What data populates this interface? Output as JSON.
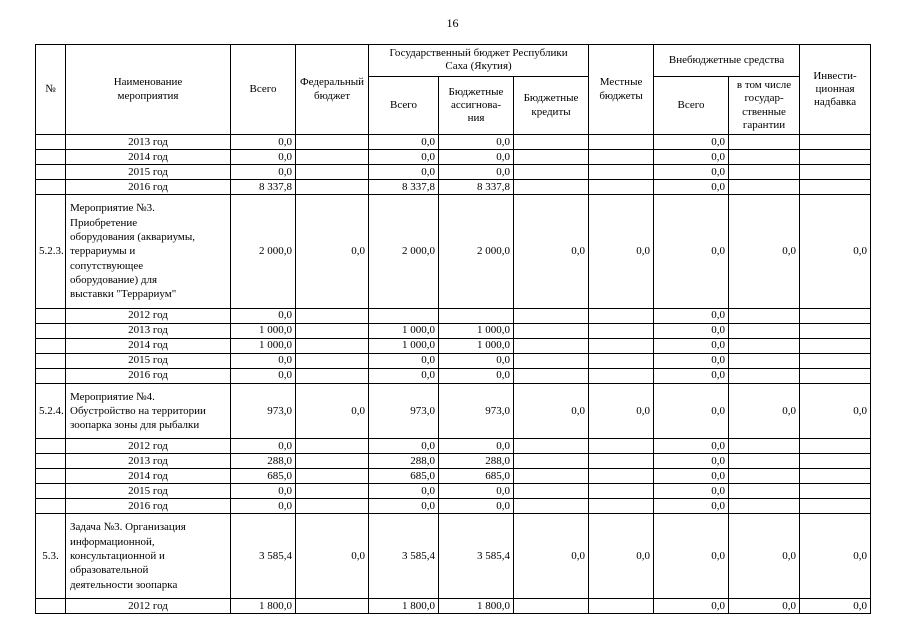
{
  "page": {
    "number": "16"
  },
  "table": {
    "headers": {
      "num": "№",
      "name": "Наименование\nмероприятия",
      "total": "Всего",
      "federal": "Федеральный\nбюджет",
      "state_group": "Государственный бюджет Республики\nСаха (Якутия)",
      "state_total": "Всего",
      "state_assign": "Бюджетные\nассигнова-\nния",
      "state_credits": "Бюджетные\nкредиты",
      "local": "Местные\nбюджеты",
      "extra_group": "Внебюджетные средства",
      "extra_total": "Всего",
      "extra_guarantee": "в том числе\nгосудар-\nственные\nгарантии",
      "invest": "Инвести-\nционная\nнадбавка"
    },
    "rows": [
      {
        "type": "year",
        "cells": [
          "",
          "2013 год",
          "0,0",
          "",
          "0,0",
          "0,0",
          "",
          "",
          "0,0",
          "",
          ""
        ]
      },
      {
        "type": "year",
        "cells": [
          "",
          "2014 год",
          "0,0",
          "",
          "0,0",
          "0,0",
          "",
          "",
          "0,0",
          "",
          ""
        ]
      },
      {
        "type": "year",
        "cells": [
          "",
          "2015 год",
          "0,0",
          "",
          "0,0",
          "0,0",
          "",
          "",
          "0,0",
          "",
          ""
        ]
      },
      {
        "type": "year",
        "cells": [
          "",
          "2016 год",
          "8 337,8",
          "",
          "8 337,8",
          "8 337,8",
          "",
          "",
          "0,0",
          "",
          ""
        ]
      },
      {
        "type": "item",
        "cells": [
          "5.2.3.",
          "Мероприятие №3.\nПриобретение\nоборудования (аквариумы,\nтеррариумы и\nсопутствующее\nоборудование) для\nвыставки \"Террариум\"",
          "2 000,0",
          "0,0",
          "2 000,0",
          "2 000,0",
          "0,0",
          "0,0",
          "0,0",
          "0,0",
          "0,0"
        ]
      },
      {
        "type": "year",
        "cells": [
          "",
          "2012 год",
          "0,0",
          "",
          "",
          "",
          "",
          "",
          "0,0",
          "",
          ""
        ]
      },
      {
        "type": "year",
        "cells": [
          "",
          "2013 год",
          "1 000,0",
          "",
          "1 000,0",
          "1 000,0",
          "",
          "",
          "0,0",
          "",
          ""
        ]
      },
      {
        "type": "year",
        "cells": [
          "",
          "2014 год",
          "1 000,0",
          "",
          "1 000,0",
          "1 000,0",
          "",
          "",
          "0,0",
          "",
          ""
        ]
      },
      {
        "type": "year",
        "cells": [
          "",
          "2015 год",
          "0,0",
          "",
          "0,0",
          "0,0",
          "",
          "",
          "0,0",
          "",
          ""
        ]
      },
      {
        "type": "year",
        "cells": [
          "",
          "2016 год",
          "0,0",
          "",
          "0,0",
          "0,0",
          "",
          "",
          "0,0",
          "",
          ""
        ]
      },
      {
        "type": "item",
        "cells": [
          "5.2.4.",
          "Мероприятие №4.\nОбустройство на территории\nзоопарка зоны для рыбалки\n",
          "973,0",
          "0,0",
          "973,0",
          "973,0",
          "0,0",
          "0,0",
          "0,0",
          "0,0",
          "0,0"
        ]
      },
      {
        "type": "year",
        "cells": [
          "",
          "2012 год",
          "0,0",
          "",
          "0,0",
          "0,0",
          "",
          "",
          "0,0",
          "",
          ""
        ]
      },
      {
        "type": "year",
        "cells": [
          "",
          "2013 год",
          "288,0",
          "",
          "288,0",
          "288,0",
          "",
          "",
          "0,0",
          "",
          ""
        ]
      },
      {
        "type": "year",
        "cells": [
          "",
          "2014 год",
          "685,0",
          "",
          "685,0",
          "685,0",
          "",
          "",
          "0,0",
          "",
          ""
        ]
      },
      {
        "type": "year",
        "cells": [
          "",
          "2015 год",
          "0,0",
          "",
          "0,0",
          "0,0",
          "",
          "",
          "0,0",
          "",
          ""
        ]
      },
      {
        "type": "year",
        "cells": [
          "",
          "2016 год",
          "0,0",
          "",
          "0,0",
          "0,0",
          "",
          "",
          "0,0",
          "",
          ""
        ]
      },
      {
        "type": "item",
        "cells": [
          "5.3.",
          "Задача №3. Организация\nинформационной,\nконсультационной и\nобразовательной\nдеятельности  зоопарка",
          "3 585,4",
          "0,0",
          "3 585,4",
          "3 585,4",
          "0,0",
          "0,0",
          "0,0",
          "0,0",
          "0,0"
        ]
      },
      {
        "type": "year",
        "cells": [
          "",
          "2012 год",
          "1 800,0",
          "",
          "1 800,0",
          "1 800,0",
          "",
          "",
          "0,0",
          "0,0",
          "0,0"
        ]
      }
    ]
  }
}
